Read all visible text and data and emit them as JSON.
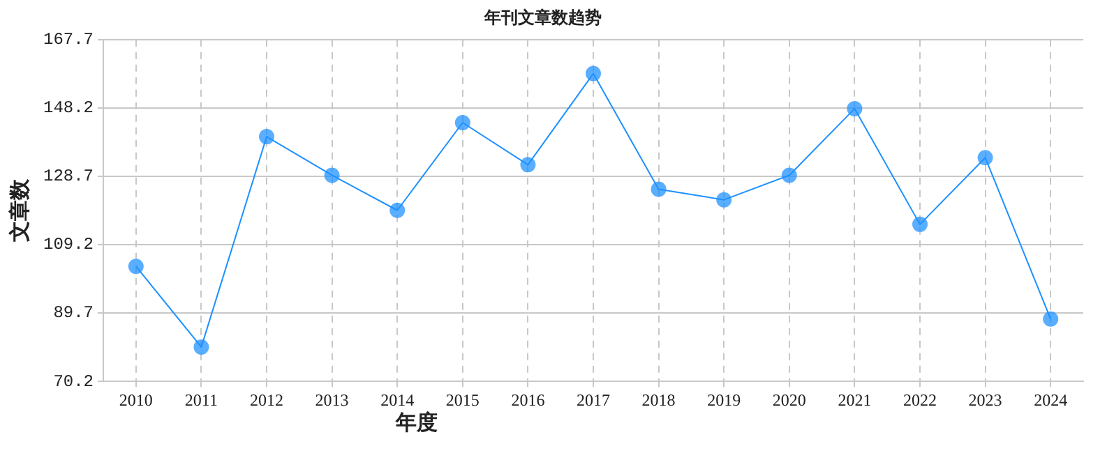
{
  "chart_data": {
    "type": "line",
    "title": "年刊文章数趋势",
    "xlabel": "年度",
    "ylabel": "文章数",
    "categories": [
      "2010",
      "2011",
      "2012",
      "2013",
      "2014",
      "2015",
      "2016",
      "2017",
      "2018",
      "2019",
      "2020",
      "2021",
      "2022",
      "2023",
      "2024"
    ],
    "series": [
      {
        "color": "#1e90ff",
        "values": [
          103,
          80,
          140,
          129,
          119,
          144,
          132,
          158,
          125,
          122,
          129,
          148,
          115,
          134,
          88
        ]
      }
    ],
    "ylim": [
      70.2,
      167.7
    ],
    "yticks": [
      70.2,
      89.7,
      109.2,
      128.7,
      148.2,
      167.7
    ],
    "grid": true,
    "marker": "circle",
    "line_style": "solid"
  }
}
